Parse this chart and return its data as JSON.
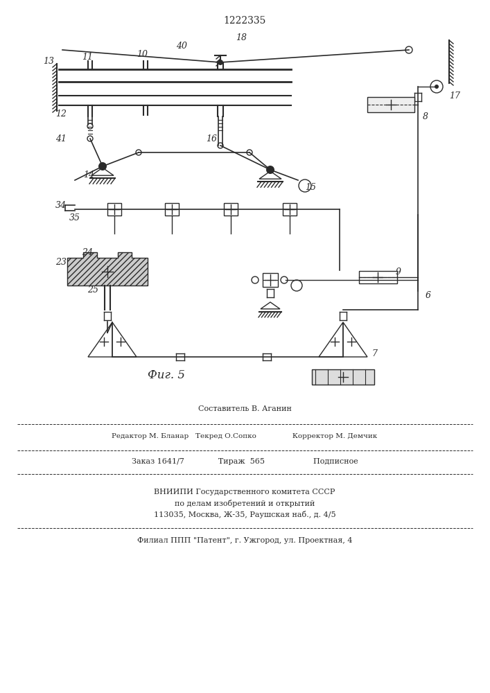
{
  "title": "1222335",
  "fig_label": "Фиг. 5",
  "background_color": "#ffffff",
  "line_color": "#2a2a2a",
  "footer_lines": [
    "Составитель В. Аганин",
    "Редактор М. Бланар   Текред О.Сопко                Корректор М. Демчик",
    "Заказ 1641/7              Тираж  565                    Подписное",
    "ВНИИПИ Государственного комитета СССР",
    "по делам изобретений и открытий",
    "113035, Москва, Ж-35, Раушская наб., д. 4/5",
    "Филиал ППП \"Патент\", г. Ужгород, ул. Проектная, 4"
  ]
}
